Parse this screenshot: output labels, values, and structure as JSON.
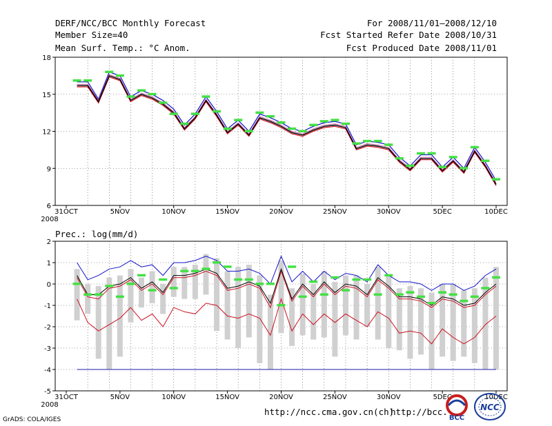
{
  "header": {
    "title": "DERF/NCC/BCC Monthly Forecast",
    "member": "Member Size=40",
    "variable": "Mean Surf. Temp.: °C Anom.",
    "period": "For 2008/11/01—2008/12/10",
    "started": "Fcst Started Refer Date 2008/10/31",
    "produced": "Fcst Produced Date 2008/11/01"
  },
  "footer": {
    "url1": "http://ncc.cma.gov.cn(ch)",
    "url2": "http://bcc.",
    "grads": "GrADS: COLA/IGES",
    "logo1": "BCC",
    "logo2": "NCC"
  },
  "colors": {
    "mean": "#000000",
    "upper": "#1010cc",
    "lower": "#cc1020",
    "marker": "#44e044",
    "box": "#d0d0d0",
    "ref": "#1a1aaa"
  },
  "chart_data": [
    {
      "type": "line",
      "title": "Mean Surf. Temp.: °C Anom.",
      "ylim": [
        6,
        18
      ],
      "yticks": [
        6,
        9,
        12,
        15,
        18
      ],
      "xticklabels": [
        "31OCT",
        "5NOV",
        "10NOV",
        "15NOV",
        "20NOV",
        "25NOV",
        "30NOV",
        "5DEC",
        "10DEC"
      ],
      "year_label": "2008",
      "series": [
        {
          "name": "upper",
          "values": [
            16.0,
            16.0,
            14.6,
            16.8,
            16.5,
            14.8,
            15.3,
            15.0,
            14.5,
            13.8,
            12.5,
            13.4,
            14.8,
            13.6,
            12.2,
            12.9,
            12.0,
            13.4,
            13.1,
            12.7,
            12.2,
            12.0,
            12.4,
            12.7,
            12.8,
            12.6,
            10.9,
            11.2,
            11.1,
            10.9,
            9.9,
            9.2,
            10.1,
            10.1,
            9.1,
            9.9,
            9.0,
            10.7,
            9.5,
            8.0
          ]
        },
        {
          "name": "mean",
          "values": [
            15.8,
            15.8,
            14.5,
            16.6,
            16.3,
            14.6,
            15.1,
            14.8,
            14.3,
            13.6,
            12.3,
            13.2,
            14.6,
            13.4,
            12.0,
            12.7,
            11.8,
            13.2,
            12.9,
            12.5,
            12.0,
            11.8,
            12.2,
            12.5,
            12.6,
            12.4,
            10.7,
            11.0,
            10.9,
            10.7,
            9.7,
            9.0,
            9.9,
            9.9,
            8.9,
            9.7,
            8.8,
            10.5,
            9.3,
            7.8
          ]
        },
        {
          "name": "lower",
          "values": [
            15.6,
            15.6,
            14.3,
            16.4,
            16.1,
            14.4,
            14.9,
            14.6,
            14.1,
            13.4,
            12.1,
            13.0,
            14.4,
            13.2,
            11.8,
            12.5,
            11.6,
            13.0,
            12.7,
            12.3,
            11.8,
            11.6,
            12.0,
            12.3,
            12.4,
            12.2,
            10.5,
            10.8,
            10.7,
            10.5,
            9.5,
            8.8,
            9.7,
            9.7,
            8.7,
            9.5,
            8.6,
            10.3,
            9.1,
            7.6
          ]
        },
        {
          "name": "marker",
          "values": [
            16.1,
            16.1,
            null,
            16.8,
            16.5,
            14.8,
            15.3,
            15.0,
            14.3,
            13.4,
            12.6,
            13.4,
            14.8,
            13.6,
            12.2,
            12.9,
            12.0,
            13.5,
            13.2,
            12.7,
            12.2,
            12.0,
            12.5,
            12.8,
            12.9,
            12.6,
            11.0,
            11.2,
            11.2,
            10.9,
            9.8,
            9.2,
            10.2,
            10.2,
            9.1,
            9.9,
            9.0,
            10.7,
            9.6,
            8.1
          ]
        }
      ]
    },
    {
      "type": "line",
      "title": "Prec.: log(mm/d)",
      "ylim": [
        -5,
        2
      ],
      "yticks": [
        -5,
        -4,
        -3,
        -2,
        -1,
        0,
        1,
        2
      ],
      "xticklabels": [
        "31OCT",
        "5NOV",
        "10NOV",
        "15NOV",
        "20NOV",
        "25NOV",
        "30NOV",
        "5DEC",
        "10DEC"
      ],
      "year_label": "2008",
      "reference_line": -4,
      "series": [
        {
          "name": "upper",
          "values": [
            1.0,
            0.2,
            0.4,
            0.7,
            0.8,
            1.1,
            0.8,
            0.9,
            0.4,
            1.0,
            1.0,
            1.1,
            1.3,
            1.1,
            0.6,
            0.6,
            0.7,
            0.5,
            0.0,
            1.3,
            0.1,
            0.6,
            0.1,
            0.6,
            0.2,
            0.5,
            0.4,
            0.1,
            0.9,
            0.4,
            0.1,
            0.1,
            0.0,
            -0.3,
            0.0,
            0.0,
            -0.3,
            -0.1,
            0.4,
            0.7
          ]
        },
        {
          "name": "mean",
          "values": [
            0.4,
            -0.5,
            -0.5,
            -0.1,
            0.0,
            0.3,
            -0.2,
            0.1,
            -0.4,
            0.4,
            0.4,
            0.5,
            0.7,
            0.5,
            -0.2,
            -0.1,
            0.1,
            -0.1,
            -0.9,
            0.7,
            -0.7,
            0.0,
            -0.5,
            0.1,
            -0.4,
            0.0,
            -0.1,
            -0.5,
            0.3,
            -0.1,
            -0.6,
            -0.6,
            -0.7,
            -1.0,
            -0.6,
            -0.7,
            -1.0,
            -0.9,
            -0.4,
            0.0
          ]
        },
        {
          "name": "mean-red",
          "values": [
            0.3,
            -0.6,
            -0.7,
            -0.2,
            -0.1,
            0.2,
            -0.3,
            0.0,
            -0.5,
            0.3,
            0.3,
            0.4,
            0.6,
            0.4,
            -0.3,
            -0.2,
            0.0,
            -0.2,
            -1.1,
            0.6,
            -0.8,
            -0.1,
            -0.6,
            0.0,
            -0.5,
            -0.1,
            -0.2,
            -0.6,
            0.2,
            -0.2,
            -0.7,
            -0.7,
            -0.8,
            -1.1,
            -0.7,
            -0.8,
            -1.1,
            -1.0,
            -0.5,
            -0.1
          ]
        },
        {
          "name": "lower",
          "values": [
            -0.7,
            -1.8,
            -2.2,
            -1.9,
            -1.6,
            -1.1,
            -1.7,
            -1.4,
            -2.0,
            -1.1,
            -1.3,
            -1.4,
            -0.9,
            -1.0,
            -1.5,
            -1.6,
            -1.4,
            -1.6,
            -2.4,
            -0.7,
            -2.2,
            -1.4,
            -1.9,
            -1.4,
            -1.8,
            -1.4,
            -1.7,
            -2.0,
            -1.3,
            -1.6,
            -2.3,
            -2.2,
            -2.3,
            -2.8,
            -2.1,
            -2.5,
            -2.8,
            -2.5,
            -1.9,
            -1.5
          ]
        },
        {
          "name": "marker",
          "values": [
            0.0,
            -0.5,
            -0.5,
            -0.1,
            -0.6,
            0.0,
            0.4,
            -0.3,
            0.2,
            -0.2,
            0.6,
            0.6,
            0.7,
            1.0,
            0.8,
            0.2,
            0.2,
            0.0,
            0.0,
            -1.0,
            0.8,
            -0.6,
            0.1,
            -0.5,
            0.3,
            -0.3,
            0.2,
            0.2,
            -0.5,
            0.4,
            -0.5,
            -0.4,
            -0.6,
            -0.9,
            -0.4,
            -0.5,
            -0.8,
            -0.6,
            -0.2,
            0.3
          ]
        },
        {
          "name": "range-top",
          "values": [
            0.7,
            0.0,
            -0.1,
            0.3,
            0.4,
            0.7,
            0.3,
            0.6,
            0.0,
            0.8,
            0.8,
            0.9,
            1.4,
            1.2,
            0.6,
            0.8,
            0.9,
            0.4,
            -0.5,
            1.1,
            -0.2,
            0.5,
            0.0,
            0.6,
            0.1,
            0.4,
            0.4,
            0.0,
            0.8,
            0.4,
            -0.2,
            -0.1,
            -0.2,
            -0.4,
            0.0,
            0.0,
            -0.3,
            -0.2,
            0.3,
            0.8
          ]
        },
        {
          "name": "range-bottom",
          "values": [
            -1.7,
            -1.4,
            -3.5,
            -4.0,
            -3.4,
            -1.8,
            -1.1,
            -0.9,
            -1.4,
            -0.6,
            -0.7,
            -0.7,
            -0.5,
            -2.2,
            -2.6,
            -3.0,
            -2.5,
            -3.7,
            -4.0,
            -2.3,
            -2.9,
            -2.4,
            -2.6,
            -2.5,
            -3.4,
            -2.4,
            -2.6,
            -2.0,
            -2.6,
            -3.0,
            -3.1,
            -3.5,
            -3.3,
            -4.0,
            -3.4,
            -3.6,
            -3.4,
            -3.7,
            -4.0,
            -4.0
          ]
        }
      ]
    }
  ]
}
